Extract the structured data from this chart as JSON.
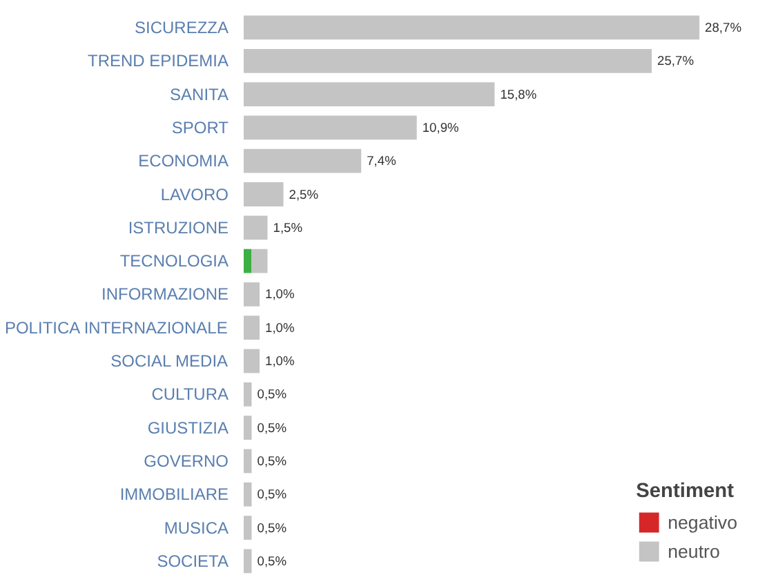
{
  "chart_data": {
    "type": "bar",
    "orientation": "horizontal",
    "stacked": true,
    "legend": "bottom right",
    "legend_title": "Sentiment",
    "categories": [
      "SICUREZZA",
      "TREND EPIDEMIA",
      "SANITA",
      "SPORT",
      "ECONOMIA",
      "LAVORO",
      "ISTRUZIONE",
      "TECNOLOGIA",
      "INFORMAZIONE",
      "POLITICA INTERNAZIONALE",
      "SOCIAL MEDIA",
      "CULTURA",
      "GIUSTIZIA",
      "GOVERNO",
      "IMMOBILIARE",
      "MUSICA",
      "SOCIETA"
    ],
    "series": [
      {
        "color": "#3cb043",
        "values": [
          null,
          null,
          null,
          null,
          null,
          null,
          null,
          0.5,
          null,
          null,
          null,
          null,
          null,
          null,
          null,
          null,
          null
        ]
      },
      {
        "name": "negativo",
        "color": "#d62728",
        "values": [
          null,
          null,
          null,
          null,
          null,
          null,
          null,
          null,
          null,
          null,
          null,
          null,
          null,
          null,
          null,
          null,
          null
        ]
      },
      {
        "name": "neutro",
        "color": "#c4c4c4",
        "values": [
          28.7,
          25.7,
          15.8,
          10.9,
          7.4,
          2.5,
          1.5,
          1.0,
          1.0,
          1.0,
          1.0,
          0.5,
          0.5,
          0.5,
          0.5,
          0.5,
          0.5
        ],
        "value_labels": [
          "28,7%",
          "25,7%",
          "15,8%",
          "10,9%",
          "7,4%",
          "2,5%",
          "1,5%",
          null,
          "1,0%",
          "1,0%",
          "1,0%",
          "0,5%",
          "0,5%",
          "0,5%",
          "0,5%",
          "0,5%",
          "0,5%"
        ]
      }
    ]
  }
}
